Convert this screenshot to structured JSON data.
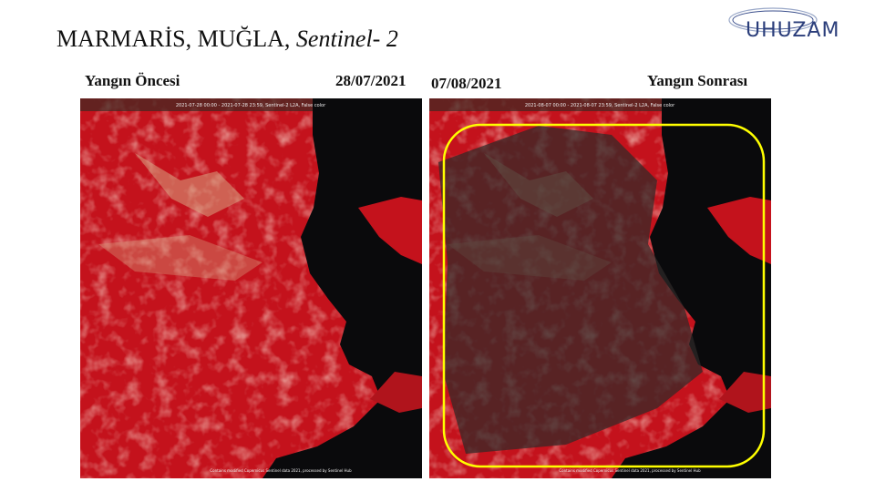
{
  "header": {
    "title_main": "MARMARİS, MUĞLA,",
    "title_italic": "Sentinel- 2",
    "logo": "UHUZAM"
  },
  "panels": [
    {
      "label": "Yangın Öncesi",
      "date": "28/07/2021",
      "caption": "2021-07-28 00:00 - 2021-07-28 23:59, Sentinel-2 L2A, False color",
      "attribution": "Contains modified Copernicus Sentinel data 2021, processed by Sentinel Hub"
    },
    {
      "label": "Yangın Sonrası",
      "date": "07/08/2021",
      "caption": "2021-08-07 00:00 - 2021-08-07 23:59, Sentinel-2 L2A, False color",
      "attribution": "Contains modified Copernicus Sentinel data 2021, processed by Sentinel Hub"
    }
  ]
}
